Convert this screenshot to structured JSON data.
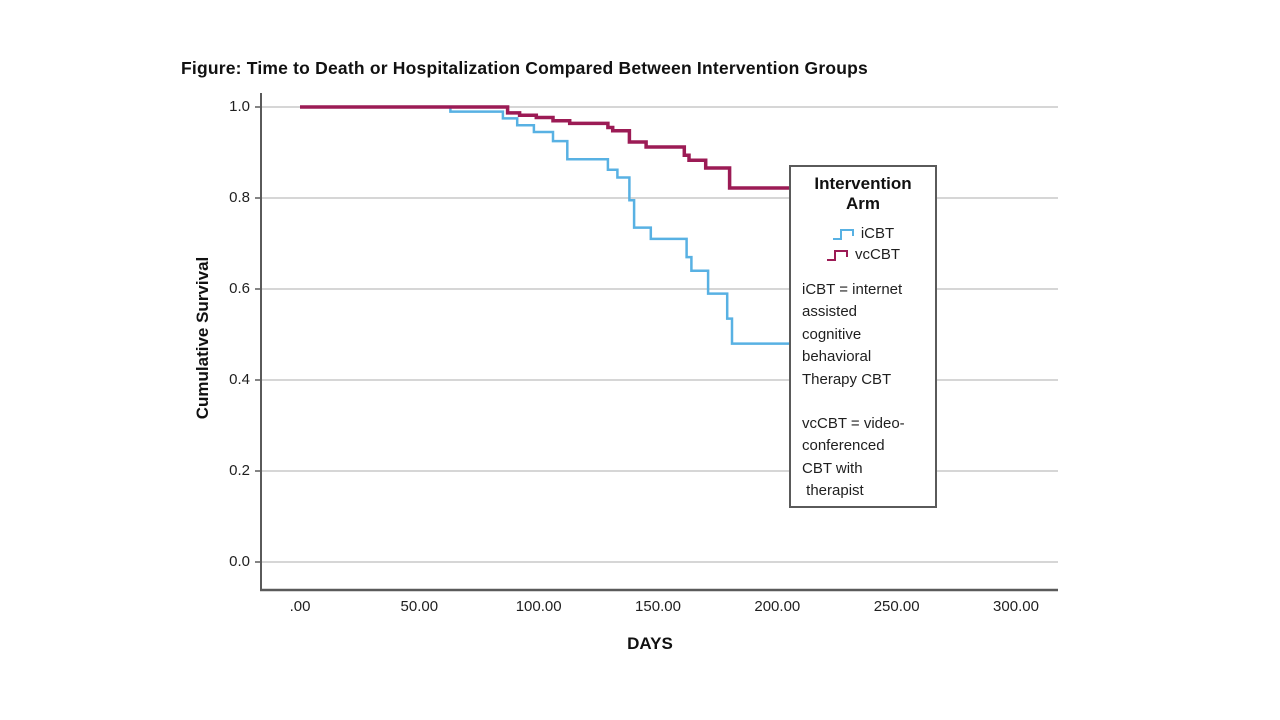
{
  "chart_data": {
    "type": "line",
    "variant": "kaplan-meier-step-survival",
    "title": "Figure: Time to Death or Hospitalization Compared Between Intervention Groups",
    "xlabel": "DAYS",
    "ylabel": "Cumulative Survival",
    "xlim": [
      0,
      317
    ],
    "ylim": [
      0.0,
      1.0
    ],
    "x_tick_values": [
      0,
      50,
      100,
      150,
      200,
      250,
      300
    ],
    "x_tick_labels": [
      ".00",
      "50.00",
      "100.00",
      "150.00",
      "200.00",
      "250.00",
      "300.00"
    ],
    "y_tick_values": [
      0.0,
      0.2,
      0.4,
      0.6,
      0.8,
      1.0
    ],
    "y_tick_labels": [
      "0.0",
      "0.2",
      "0.4",
      "0.6",
      "0.8",
      "1.0"
    ],
    "grid": "horizontal-only",
    "legend_position": "overlay-right",
    "colors": {
      "grid": "#c9c9c9",
      "axis": "#5a5a5a",
      "icbt_line": "#58b1e3",
      "vccbt_line": "#9c1b55",
      "legend_border": "#5a5a5a",
      "text": "#1f1f1f"
    },
    "series": [
      {
        "name": "iCBT",
        "color": "#58b1e3",
        "stroke_width": 2.5,
        "step_points": [
          [
            0,
            1.0
          ],
          [
            63,
            0.99
          ],
          [
            85,
            0.975
          ],
          [
            91,
            0.96
          ],
          [
            98,
            0.945
          ],
          [
            106,
            0.925
          ],
          [
            112,
            0.885
          ],
          [
            129,
            0.862
          ],
          [
            133,
            0.845
          ],
          [
            138,
            0.795
          ],
          [
            140,
            0.735
          ],
          [
            147,
            0.71
          ],
          [
            162,
            0.67
          ],
          [
            164,
            0.64
          ],
          [
            171,
            0.59
          ],
          [
            179,
            0.535
          ],
          [
            181,
            0.48
          ],
          [
            206,
            0.48
          ]
        ]
      },
      {
        "name": "vcCBT",
        "color": "#9c1b55",
        "stroke_width": 3.5,
        "step_points": [
          [
            0,
            1.0
          ],
          [
            87,
            0.987
          ],
          [
            92,
            0.982
          ],
          [
            99,
            0.977
          ],
          [
            106,
            0.97
          ],
          [
            113,
            0.964
          ],
          [
            129,
            0.955
          ],
          [
            131,
            0.948
          ],
          [
            138,
            0.923
          ],
          [
            145,
            0.912
          ],
          [
            161,
            0.894
          ],
          [
            163,
            0.883
          ],
          [
            170,
            0.866
          ],
          [
            180,
            0.822
          ],
          [
            206,
            0.822
          ]
        ]
      }
    ]
  },
  "legend": {
    "title_lines": [
      "Intervention",
      "Arm"
    ],
    "note1_lines": [
      "iCBT = internet",
      "assisted",
      "cognitive",
      "behavioral",
      "Therapy CBT"
    ],
    "note2_lines": [
      "vcCBT = video-",
      "conferenced",
      "CBT with",
      " therapist"
    ]
  }
}
